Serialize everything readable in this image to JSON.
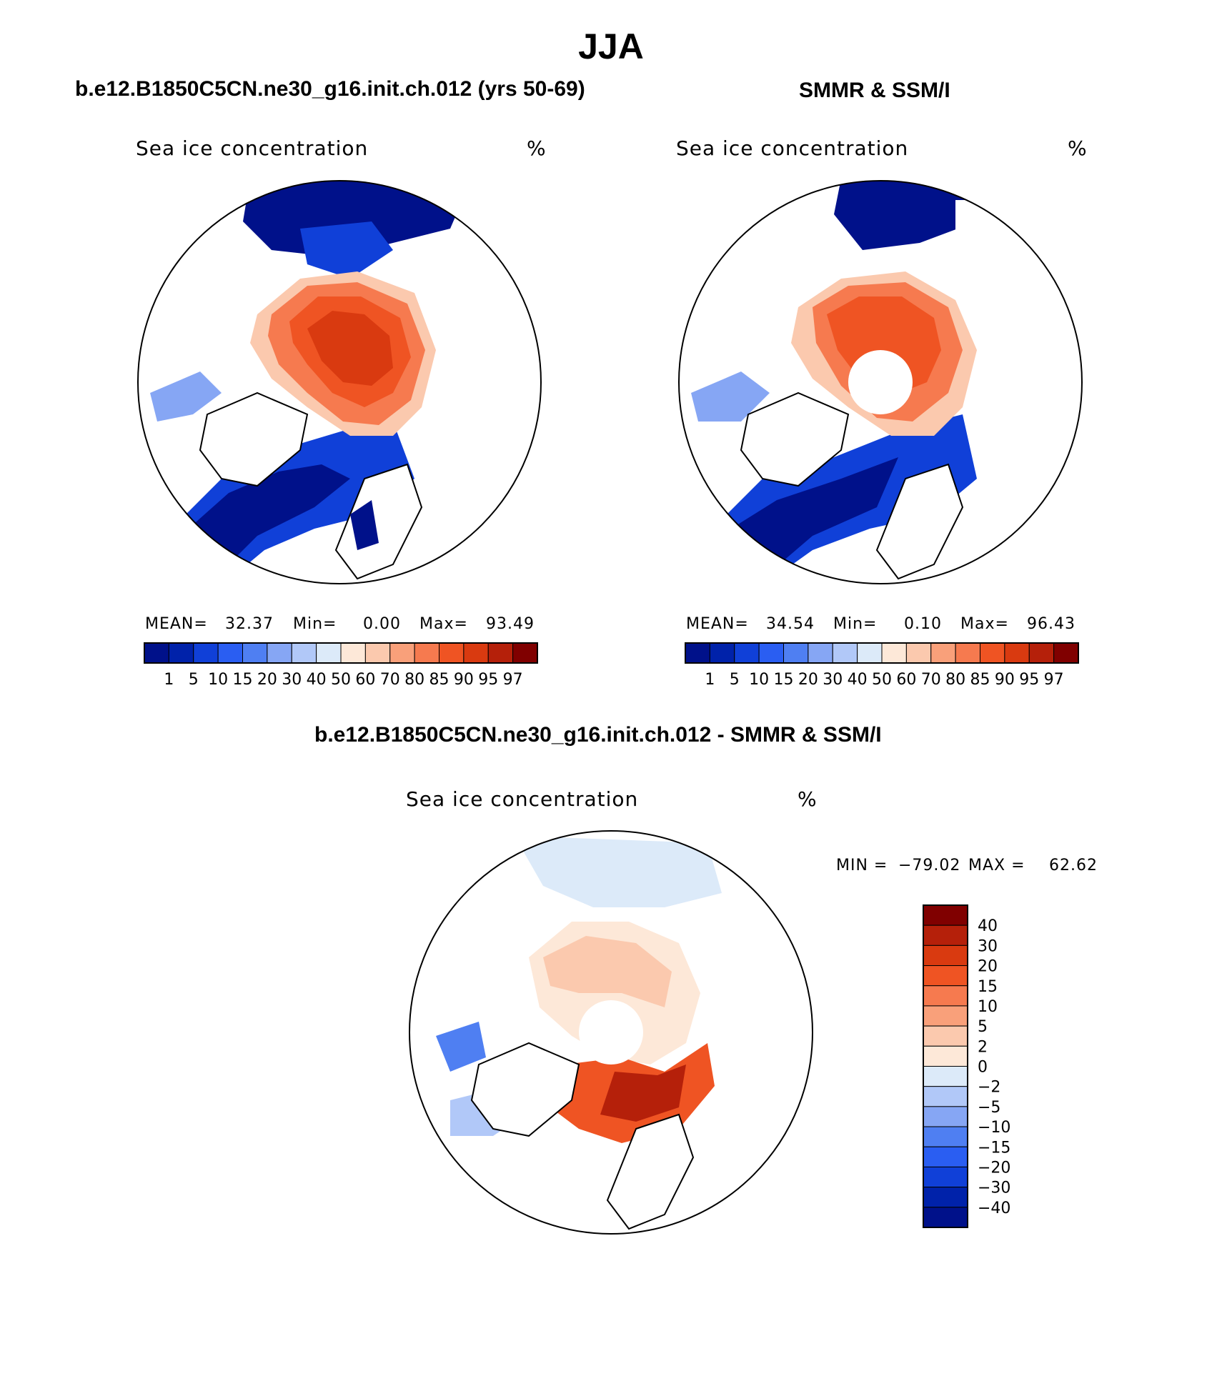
{
  "title": "JJA",
  "panels": [
    {
      "header": "b.e12.B1850C5CN.ne30_g16.init.ch.012 (yrs 50-69)",
      "map_label": "Sea ice concentration",
      "unit": "%",
      "stats": {
        "mean_label": "MEAN=",
        "mean": "32.37",
        "min_label": "Min=",
        "min": "0.00",
        "max_label": "Max=",
        "max": "93.49"
      }
    },
    {
      "header": "SMMR & SSM/I",
      "map_label": "Sea ice concentration",
      "unit": "%",
      "stats": {
        "mean_label": "MEAN=",
        "mean": "34.54",
        "min_label": "Min=",
        "min": "0.10",
        "max_label": "Max=",
        "max": "96.43"
      }
    },
    {
      "header": "b.e12.B1850C5CN.ne30_g16.init.ch.012 - SMMR & SSM/I",
      "map_label": "Sea ice concentration",
      "unit": "%",
      "stats": {
        "min_label": "MIN =",
        "min": "−79.02",
        "max_label": "MAX =",
        "max": "62.62"
      }
    }
  ],
  "colorbar_concentration": {
    "ticks": [
      "1",
      "5",
      "10",
      "15",
      "20",
      "30",
      "40",
      "50",
      "60",
      "70",
      "80",
      "85",
      "90",
      "95",
      "97"
    ],
    "colors": [
      "#00118a",
      "#0022aa",
      "#1040d8",
      "#2a5ef2",
      "#4f7ff2",
      "#86a6f4",
      "#b1c8f8",
      "#dceaf9",
      "#fde8d8",
      "#fbc9ae",
      "#f9a07a",
      "#f67a4f",
      "#ef5423",
      "#d93a10",
      "#b5200a",
      "#800000"
    ]
  },
  "colorbar_difference": {
    "ticks": [
      "40",
      "30",
      "20",
      "15",
      "10",
      "5",
      "2",
      "0",
      "−2",
      "−5",
      "−10",
      "−15",
      "−20",
      "−30",
      "−40"
    ],
    "colors": [
      "#800000",
      "#b5200a",
      "#d93a10",
      "#ef5423",
      "#f67a4f",
      "#f9a07a",
      "#fbc9ae",
      "#fde8d8",
      "#dceaf9",
      "#b1c8f8",
      "#86a6f4",
      "#4f7ff2",
      "#2a5ef2",
      "#1040d8",
      "#0022aa",
      "#00118a"
    ]
  },
  "chart_data": [
    {
      "type": "heatmap",
      "title": "b.e12.B1850C5CN.ne30_g16.init.ch.012 (yrs 50-69)",
      "variable": "Sea ice concentration",
      "units": "%",
      "projection": "north polar stereographic",
      "mean": 32.37,
      "min": 0.0,
      "max": 93.49,
      "levels": [
        1,
        5,
        10,
        15,
        20,
        30,
        40,
        50,
        60,
        70,
        80,
        85,
        90,
        95,
        97
      ]
    },
    {
      "type": "heatmap",
      "title": "SMMR & SSM/I",
      "variable": "Sea ice concentration",
      "units": "%",
      "projection": "north polar stereographic",
      "mean": 34.54,
      "min": 0.1,
      "max": 96.43,
      "levels": [
        1,
        5,
        10,
        15,
        20,
        30,
        40,
        50,
        60,
        70,
        80,
        85,
        90,
        95,
        97
      ]
    },
    {
      "type": "heatmap",
      "title": "b.e12.B1850C5CN.ne30_g16.init.ch.012 - SMMR & SSM/I",
      "variable": "Sea ice concentration",
      "units": "%",
      "projection": "north polar stereographic",
      "min": -79.02,
      "max": 62.62,
      "levels": [
        -40,
        -30,
        -20,
        -15,
        -10,
        -5,
        -2,
        0,
        2,
        5,
        10,
        15,
        20,
        30,
        40
      ]
    }
  ]
}
